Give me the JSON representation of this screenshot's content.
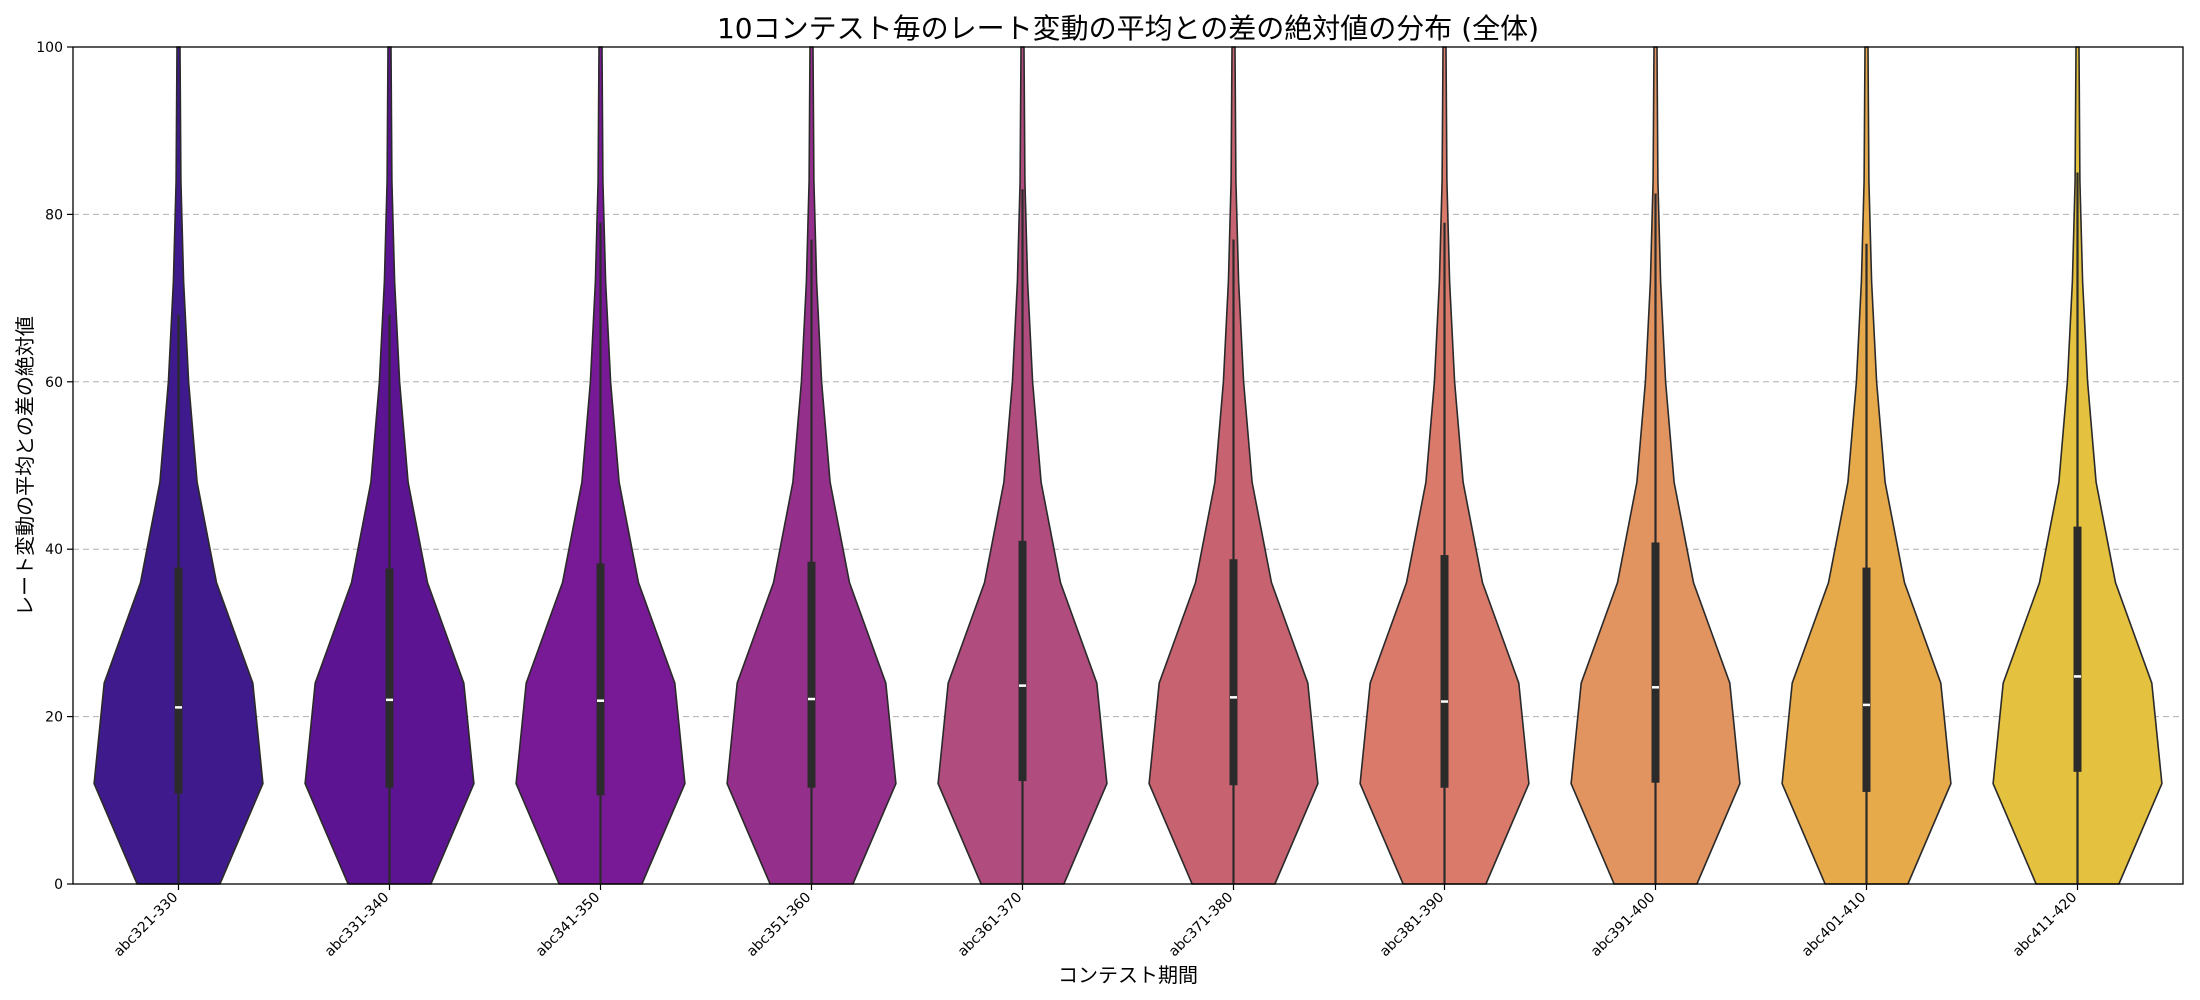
{
  "chart_data": {
    "type": "violin",
    "title": "10コンテスト毎のレート変動の平均との差の絶対値の分布 (全体)",
    "xlabel": "コンテスト期間",
    "ylabel": "レート変動の平均との差の絶対値",
    "ylim": [
      0,
      100
    ],
    "yticks": [
      0,
      20,
      40,
      60,
      80,
      100
    ],
    "grid": "horizontal dashed",
    "categories": [
      "abc321-330",
      "abc331-340",
      "abc341-350",
      "abc351-360",
      "abc361-370",
      "abc371-380",
      "abc381-390",
      "abc391-400",
      "abc401-410",
      "abc411-420"
    ],
    "colors": [
      "#3f1a8c",
      "#5d1493",
      "#781a96",
      "#952f8c",
      "#b04c7e",
      "#c76371",
      "#d97a6b",
      "#e29460",
      "#e6aa4b",
      "#e4c23f"
    ],
    "stats": [
      {
        "q1": 10.8,
        "median": 21.1,
        "q3": 37.8,
        "whisker_high": 68
      },
      {
        "q1": 11.5,
        "median": 22.0,
        "q3": 37.7,
        "whisker_high": 68
      },
      {
        "q1": 10.6,
        "median": 21.9,
        "q3": 38.3,
        "whisker_high": 79
      },
      {
        "q1": 11.5,
        "median": 22.1,
        "q3": 38.5,
        "whisker_high": 77
      },
      {
        "q1": 12.3,
        "median": 23.7,
        "q3": 41.0,
        "whisker_high": 83
      },
      {
        "q1": 11.8,
        "median": 22.3,
        "q3": 38.8,
        "whisker_high": 77
      },
      {
        "q1": 11.5,
        "median": 21.8,
        "q3": 39.3,
        "whisker_high": 79
      },
      {
        "q1": 12.1,
        "median": 23.5,
        "q3": 40.8,
        "whisker_high": 82.5
      },
      {
        "q1": 11.0,
        "median": 21.4,
        "q3": 37.8,
        "whisker_high": 76.5
      },
      {
        "q1": 13.4,
        "median": 24.8,
        "q3": 42.7,
        "whisker_high": 85
      }
    ],
    "density_profile": [
      [
        0,
        0.49
      ],
      [
        12,
        1.0
      ],
      [
        24,
        0.88
      ],
      [
        36,
        0.45
      ],
      [
        48,
        0.22
      ],
      [
        60,
        0.12
      ],
      [
        72,
        0.06
      ],
      [
        84,
        0.028
      ],
      [
        100,
        0.018
      ]
    ]
  }
}
